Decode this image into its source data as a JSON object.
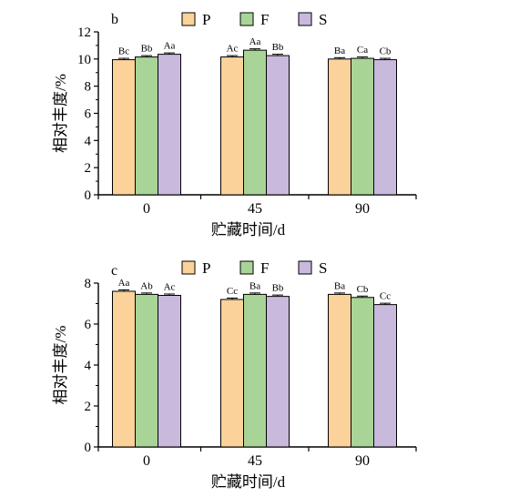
{
  "chart_data": [
    {
      "type": "bar",
      "panel_label": "b",
      "categories": [
        "0",
        "45",
        "90"
      ],
      "xlabel": "贮藏时间/d",
      "ylabel": "相对丰度/%",
      "ylim": [
        0,
        12
      ],
      "yticks": [
        "0",
        "2",
        "4",
        "6",
        "8",
        "10",
        "12"
      ],
      "legend_position": "top",
      "series": [
        {
          "name": "P",
          "color": "#fbd39a",
          "values": [
            9.95,
            10.15,
            10.0
          ],
          "labels": [
            "Bc",
            "Ac",
            "Ba"
          ]
        },
        {
          "name": "F",
          "color": "#a8d597",
          "values": [
            10.15,
            10.65,
            10.05
          ],
          "labels": [
            "Bb",
            "Aa",
            "Ca"
          ]
        },
        {
          "name": "S",
          "color": "#c9b9dc",
          "values": [
            10.35,
            10.25,
            9.95
          ],
          "labels": [
            "Aa",
            "Bb",
            "Cb"
          ]
        }
      ]
    },
    {
      "type": "bar",
      "panel_label": "c",
      "categories": [
        "0",
        "45",
        "90"
      ],
      "xlabel": "贮藏时间/d",
      "ylabel": "相对丰度/%",
      "ylim": [
        0,
        8
      ],
      "yticks": [
        "0",
        "2",
        "4",
        "6",
        "8"
      ],
      "legend_position": "top",
      "series": [
        {
          "name": "P",
          "color": "#fbd39a",
          "values": [
            7.6,
            7.2,
            7.45
          ],
          "labels": [
            "Aa",
            "Cc",
            "Ba"
          ]
        },
        {
          "name": "F",
          "color": "#a8d597",
          "values": [
            7.45,
            7.45,
            7.3
          ],
          "labels": [
            "Ab",
            "Ba",
            "Cb"
          ]
        },
        {
          "name": "S",
          "color": "#c9b9dc",
          "values": [
            7.4,
            7.35,
            6.95
          ],
          "labels": [
            "Ac",
            "Bb",
            "Cc"
          ]
        }
      ]
    }
  ]
}
